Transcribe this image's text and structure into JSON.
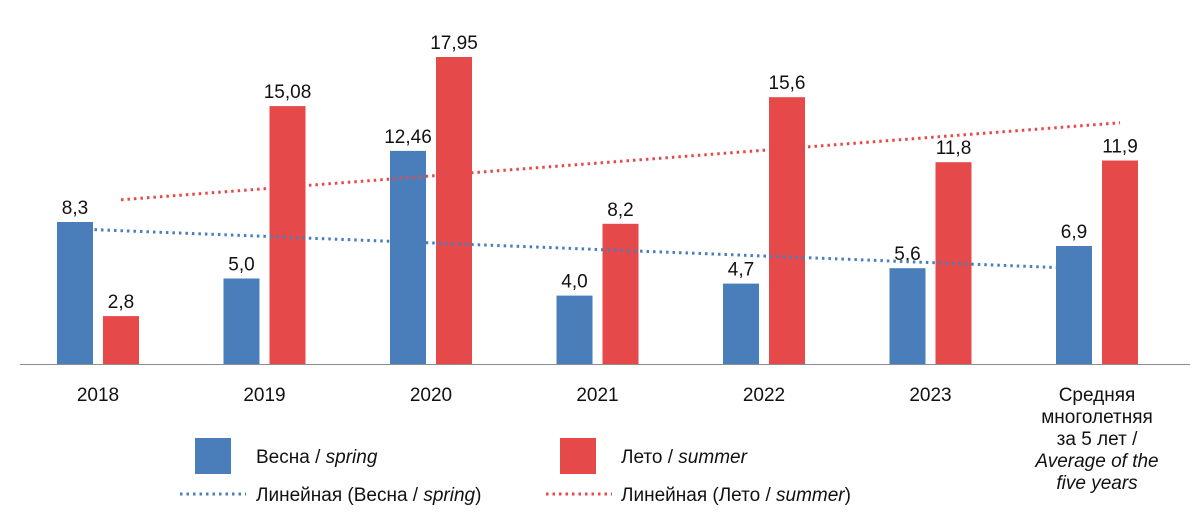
{
  "chart_data": {
    "type": "bar",
    "categories": [
      "2018",
      "2019",
      "2020",
      "2021",
      "2022",
      "2023",
      "Средняя многолетняя за 5 лет / Average of the five years"
    ],
    "category_label_lines": [
      [
        "2018"
      ],
      [
        "2019"
      ],
      [
        "2020"
      ],
      [
        "2021"
      ],
      [
        "2022"
      ],
      [
        "2023"
      ],
      [
        "Средняя",
        "многолетняя",
        "за 5 лет /",
        "Average of the",
        "five years"
      ]
    ],
    "series": [
      {
        "name": "Весна / spring",
        "name_main": "Весна / ",
        "name_italic": "spring",
        "color": "#4a7ebb",
        "values": [
          8.3,
          5.0,
          12.46,
          4.0,
          4.7,
          5.6,
          6.9
        ],
        "labels": [
          "8,3",
          "5,0",
          "12,46",
          "4,0",
          "4,7",
          "5,6",
          "6,9"
        ]
      },
      {
        "name": "Лето / summer",
        "name_main": "Лето / ",
        "name_italic": "summer",
        "color": "#e5494a",
        "values": [
          2.8,
          15.08,
          17.95,
          8.2,
          15.6,
          11.8,
          11.9
        ],
        "labels": [
          "2,8",
          "15,08",
          "17,95",
          "8,2",
          "15,6",
          "11,8",
          "11,9"
        ]
      }
    ],
    "trendlines": [
      {
        "series": "Весна / spring",
        "name_main": "Линейная (Весна / ",
        "name_italic": "spring",
        "name_close": ")",
        "color": "#4a7ebb",
        "style": "dotted",
        "start_value": 7.9,
        "end_value": 5.6
      },
      {
        "series": "Лето / summer",
        "name_main": "Линейная (Лето / ",
        "name_italic": "summer",
        "name_close": ")",
        "color": "#e5494a",
        "style": "dotted",
        "start_value": 9.6,
        "end_value": 14.1
      }
    ],
    "ylim": [
      0,
      19
    ],
    "y_axis_visible": false,
    "grid": false,
    "legend_position": "bottom"
  }
}
